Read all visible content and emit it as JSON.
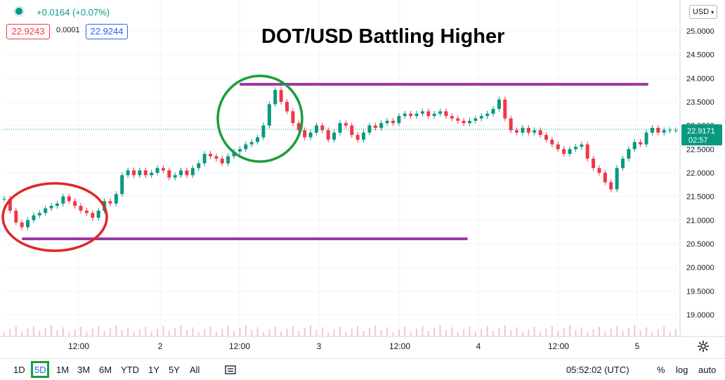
{
  "header": {
    "change": "+0.0164 (+0.07%)",
    "bid": "22.9243",
    "spread": "0.0001",
    "ask": "22.9244",
    "currency": "USD"
  },
  "annotation_title": "DOT/USD Battling Higher",
  "price_label": {
    "price": "22.9171",
    "countdown": "02:57"
  },
  "timeframes": [
    "1D",
    "5D",
    "1M",
    "3M",
    "6M",
    "YTD",
    "1Y",
    "5Y",
    "All"
  ],
  "active_timeframe": "5D",
  "clock": "05:52:02 (UTC)",
  "options": {
    "percent": "%",
    "log": "log",
    "auto": "auto"
  },
  "icons": {
    "status": "status-dot-icon",
    "compare": "compare-icon",
    "settings": "gear-icon"
  },
  "colors": {
    "up": "#089981",
    "down": "#f23645",
    "resistance_line": "#9c3aa6",
    "support_line": "#9c3aa6",
    "circle_low": "#e02626",
    "circle_high": "#1a9e3a",
    "price_tag": "#089981"
  },
  "chart_data": {
    "type": "line",
    "title": "DOT/USD Battling Higher",
    "xlabel": "",
    "ylabel": "",
    "ylim": [
      18.6,
      25.35
    ],
    "yticks": [
      "25.0000",
      "24.5000",
      "24.0000",
      "23.5000",
      "23.0000",
      "22.5000",
      "22.0000",
      "21.5000",
      "21.0000",
      "20.5000",
      "20.0000",
      "19.5000",
      "19.0000"
    ],
    "xticks": [
      "12:00",
      "2",
      "12:00",
      "3",
      "12:00",
      "4",
      "12:00",
      "5"
    ],
    "grid": true,
    "series": [
      {
        "values": [
          21.45,
          21.2,
          20.95,
          20.85,
          21.0,
          21.1,
          21.15,
          21.25,
          21.3,
          21.35,
          21.5,
          21.4,
          21.3,
          21.2,
          21.15,
          21.05,
          21.2,
          21.4,
          21.35,
          21.55,
          21.95,
          22.05,
          21.95,
          22.05,
          21.95,
          22.0,
          22.1,
          22.05,
          21.9,
          21.95,
          22.05,
          21.95,
          22.1,
          22.2,
          22.4,
          22.35,
          22.3,
          22.2,
          22.35,
          22.45,
          22.5,
          22.6,
          22.65,
          22.75,
          23.0,
          23.45,
          23.75,
          23.5,
          23.3,
          23.05,
          22.9,
          22.75,
          22.85,
          23.0,
          22.9,
          22.7,
          22.85,
          23.05,
          23.0,
          22.8,
          22.7,
          22.85,
          23.0,
          22.95,
          23.05,
          23.1,
          23.05,
          23.2,
          23.25,
          23.2,
          23.25,
          23.3,
          23.2,
          23.25,
          23.3,
          23.2,
          23.15,
          23.1,
          23.05,
          23.1,
          23.15,
          23.2,
          23.25,
          23.35,
          23.55,
          23.15,
          22.9,
          22.85,
          22.95,
          22.85,
          22.9,
          22.8,
          22.7,
          22.6,
          22.5,
          22.4,
          22.5,
          22.55,
          22.6,
          22.3,
          22.1,
          22.0,
          21.8,
          21.65,
          22.1,
          22.3,
          22.5,
          22.65,
          22.6,
          22.85,
          22.95,
          22.85,
          22.9,
          22.9,
          22.9
        ]
      }
    ],
    "annotations": {
      "resistance": 23.88,
      "support": 20.62,
      "circles": [
        "low consolidation",
        "high reversal"
      ]
    }
  }
}
